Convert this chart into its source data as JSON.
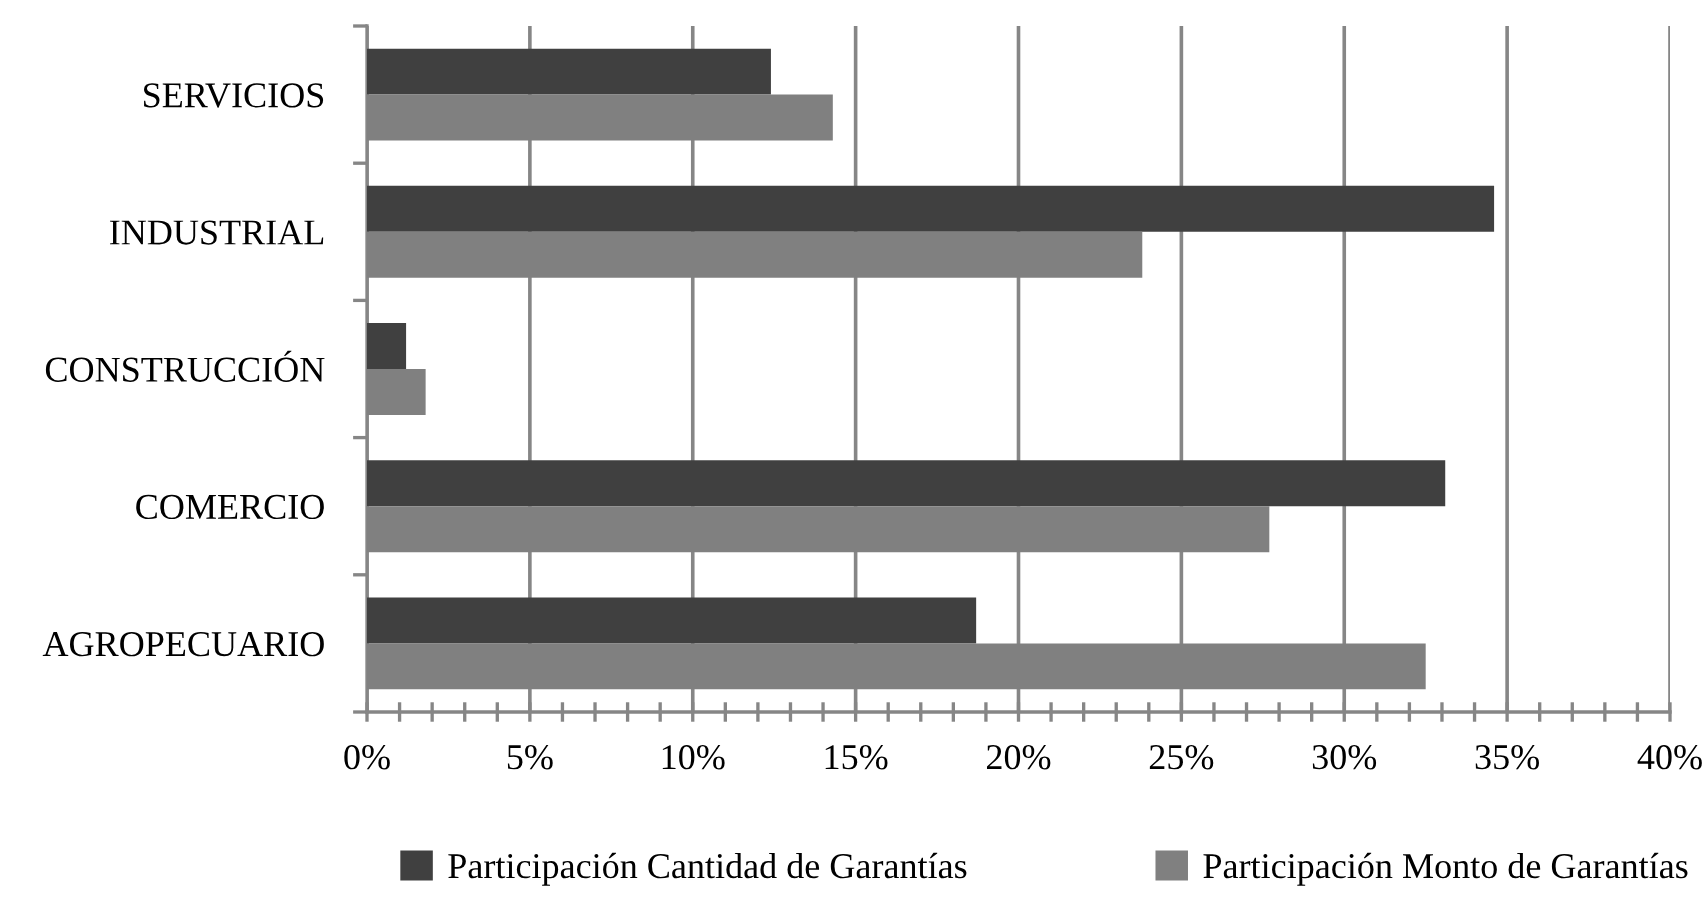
{
  "chart_data": {
    "type": "bar",
    "orientation": "horizontal",
    "categories": [
      "SERVICIOS",
      "INDUSTRIAL",
      "CONSTRUCCIÓN",
      "COMERCIO",
      "AGROPECUARIO"
    ],
    "series": [
      {
        "name": "Participación Cantidad de Garantías",
        "color": "#404040",
        "values": [
          12.4,
          34.6,
          1.2,
          33.1,
          18.7
        ]
      },
      {
        "name": "Participación Monto de Garantías",
        "color": "#808080",
        "values": [
          14.3,
          23.8,
          1.8,
          27.7,
          32.5
        ]
      }
    ],
    "xlim": [
      0,
      40
    ],
    "xticks": [
      {
        "value": 0,
        "label": "0%"
      },
      {
        "value": 1,
        "label": null
      },
      {
        "value": 2,
        "label": null
      },
      {
        "value": 3,
        "label": null
      },
      {
        "value": 4,
        "label": null
      },
      {
        "value": 5,
        "label": "5%"
      },
      {
        "value": 6,
        "label": null
      },
      {
        "value": 7,
        "label": null
      },
      {
        "value": 8,
        "label": null
      },
      {
        "value": 9,
        "label": null
      },
      {
        "value": 10,
        "label": "10%"
      },
      {
        "value": 11,
        "label": null
      },
      {
        "value": 12,
        "label": null
      },
      {
        "value": 13,
        "label": null
      },
      {
        "value": 14,
        "label": null
      },
      {
        "value": 15,
        "label": "15%"
      },
      {
        "value": 16,
        "label": null
      },
      {
        "value": 17,
        "label": null
      },
      {
        "value": 18,
        "label": null
      },
      {
        "value": 19,
        "label": null
      },
      {
        "value": 20,
        "label": "20%"
      },
      {
        "value": 21,
        "label": null
      },
      {
        "value": 22,
        "label": null
      },
      {
        "value": 23,
        "label": null
      },
      {
        "value": 24,
        "label": null
      },
      {
        "value": 25,
        "label": "25%"
      },
      {
        "value": 26,
        "label": null
      },
      {
        "value": 27,
        "label": null
      },
      {
        "value": 28,
        "label": null
      },
      {
        "value": 29,
        "label": null
      },
      {
        "value": 30,
        "label": "30%"
      },
      {
        "value": 31,
        "label": null
      },
      {
        "value": 32,
        "label": null
      },
      {
        "value": 33,
        "label": null
      },
      {
        "value": 34,
        "label": null
      },
      {
        "value": 35,
        "label": "35%"
      },
      {
        "value": 36,
        "label": null
      },
      {
        "value": 37,
        "label": null
      },
      {
        "value": 38,
        "label": null
      },
      {
        "value": 39,
        "label": null
      },
      {
        "value": 40,
        "label": "40%"
      }
    ],
    "grid": "x",
    "legend": "bottom"
  }
}
